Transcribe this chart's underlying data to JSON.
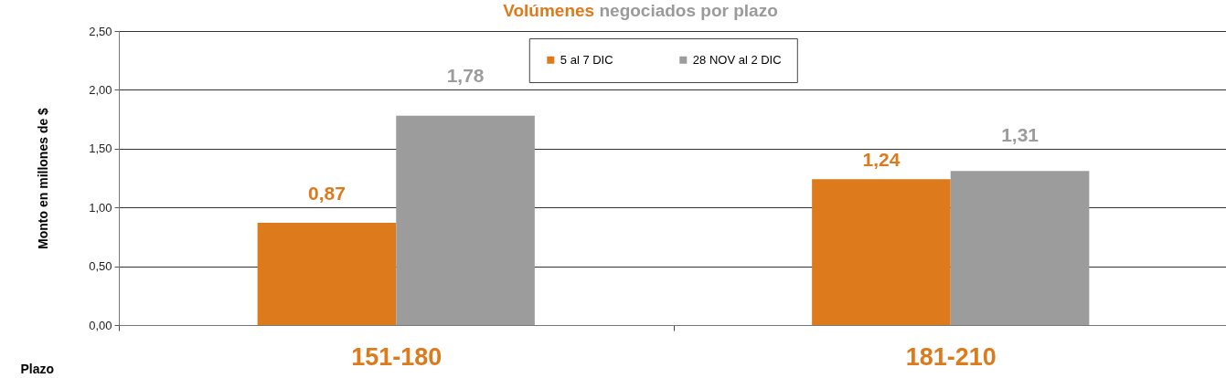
{
  "chart_data": {
    "type": "bar",
    "title": "Volúmenes negociados por plazo",
    "xlabel": "Plazo",
    "ylabel": "Monto en  millones de $",
    "categories": [
      "151-180",
      "181-210"
    ],
    "series": [
      {
        "name": "5 al 7 DIC",
        "color": "#dd7a1c",
        "values": [
          0.87,
          1.24
        ],
        "value_labels": [
          "0,87",
          "1,24"
        ]
      },
      {
        "name": "28 NOV al 2 DIC",
        "color": "#9c9c9c",
        "values": [
          1.78,
          1.31
        ],
        "value_labels": [
          "1,78",
          "1,31"
        ]
      }
    ],
    "ylim": [
      0,
      2.5
    ],
    "yticks": [
      {
        "value": 0,
        "label": "0,00"
      },
      {
        "value": 0.5,
        "label": "0,50"
      },
      {
        "value": 1,
        "label": "1,00"
      },
      {
        "value": 1.5,
        "label": "1,50"
      },
      {
        "value": 2,
        "label": "2,00"
      },
      {
        "value": 2.5,
        "label": "2,50"
      }
    ],
    "grid": "y",
    "legend": "top"
  }
}
